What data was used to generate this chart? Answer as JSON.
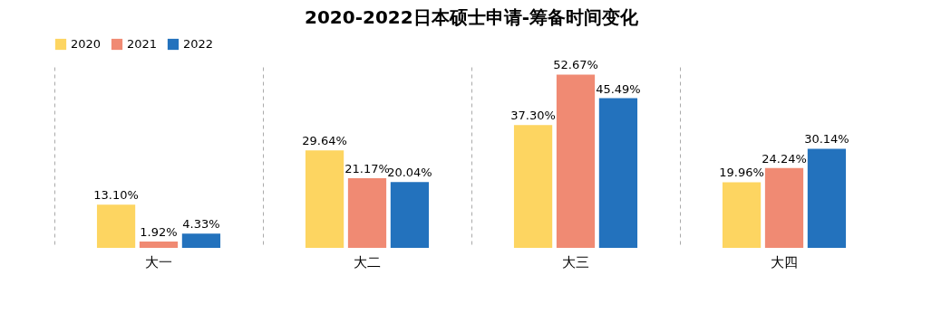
{
  "chart_data": {
    "type": "bar",
    "title": "2020-2022日本硕士申请-筹备时间变化",
    "categories": [
      "大一",
      "大二",
      "大三",
      "大四"
    ],
    "series": [
      {
        "name": "2020",
        "color": "#fdd561",
        "values": [
          13.1,
          29.64,
          37.3,
          19.96
        ],
        "value_labels": [
          "13.10%",
          "29.64%",
          "37.30%",
          "19.96%"
        ]
      },
      {
        "name": "2021",
        "color": "#f08a73",
        "values": [
          1.92,
          21.17,
          52.67,
          24.24
        ],
        "value_labels": [
          "1.92%",
          "21.17%",
          "52.67%",
          "24.24%"
        ]
      },
      {
        "name": "2022",
        "color": "#2372bd",
        "values": [
          4.33,
          20.04,
          45.49,
          30.14
        ],
        "value_labels": [
          "4.33%",
          "20.04%",
          "45.49%",
          "30.14%"
        ]
      }
    ],
    "legend": "top",
    "grid": "x"
  }
}
